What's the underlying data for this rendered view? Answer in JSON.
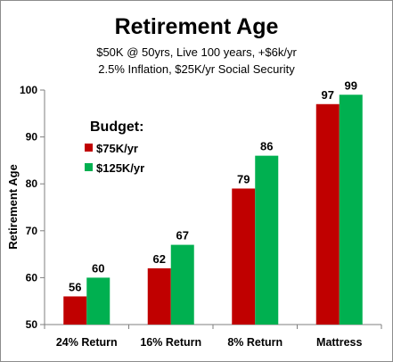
{
  "chart_data": {
    "type": "bar",
    "title": "Retirement Age",
    "subtitle_lines": [
      "$50K @ 50yrs, Live 100 years, +$6k/yr",
      "2.5% Inflation, $25K/yr Social Security"
    ],
    "ylabel": "Retirement Age",
    "xlabel": "",
    "categories": [
      "24% Return",
      "16% Return",
      "8% Return",
      "Mattress"
    ],
    "ylim": [
      50,
      100
    ],
    "yticks": [
      50,
      60,
      70,
      80,
      90,
      100
    ],
    "grid": false,
    "legend_title": "Budget:",
    "legend_position": "upper-left",
    "series": [
      {
        "name": "$75K/yr",
        "color": "#c00000",
        "values": [
          56,
          62,
          79,
          97
        ]
      },
      {
        "name": "$125K/yr",
        "color": "#00b050",
        "values": [
          60,
          67,
          86,
          99
        ]
      }
    ]
  }
}
